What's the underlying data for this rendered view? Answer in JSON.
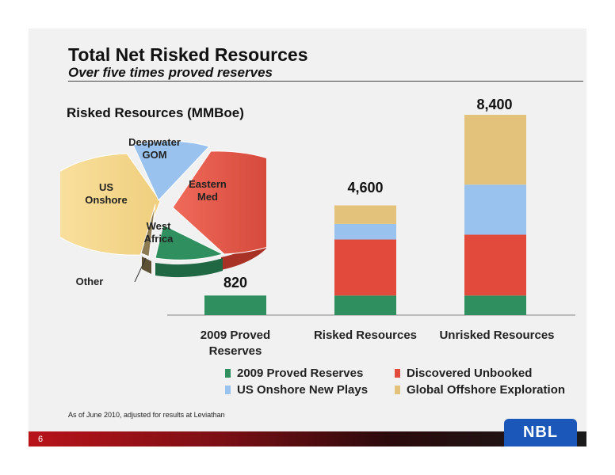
{
  "slide": {
    "title": "Total Net Risked Resources",
    "subtitle": "Over five times proved reserves",
    "section_title": "Risked Resources (MMBoe)",
    "footnote": "As of June 2010, adjusted for results at  Leviathan",
    "page_number": "6",
    "logo_text": "NBL"
  },
  "pie": {
    "labels": {
      "deepwater_line1": "Deepwater",
      "deepwater_line2": "GOM",
      "eastern_line1": "Eastern",
      "eastern_line2": "Med",
      "us_line1": "US",
      "us_line2": "Onshore",
      "west_line1": "West",
      "west_line2": "Africa",
      "other": "Other"
    },
    "colors": {
      "deepwater": "#99c2ee",
      "eastern": "#e24b3c",
      "us": "#f8d88a",
      "west": "#2f8f5e",
      "other": "#8c7a52"
    }
  },
  "chart_data": {
    "type": "bar",
    "stacked": true,
    "categories": [
      "2009 Proved Reserves",
      "Risked Resources",
      "Unrisked Resources"
    ],
    "category_lines": [
      [
        "2009 Proved",
        "Reserves"
      ],
      [
        "Risked Resources"
      ],
      [
        "Unrisked Resources"
      ]
    ],
    "totals": [
      "820",
      "4,600",
      "8,400"
    ],
    "series": [
      {
        "name": "2009 Proved Reserves",
        "color": "#2f8f5e",
        "values": [
          820,
          820,
          820
        ]
      },
      {
        "name": "Discovered Unbooked",
        "color": "#e24b3c",
        "values": [
          0,
          2350,
          2550
        ]
      },
      {
        "name": "US Onshore New Plays",
        "color": "#99c2ee",
        "values": [
          0,
          650,
          2100
        ]
      },
      {
        "name": "Global Offshore Exploration",
        "color": "#e3c37c",
        "values": [
          0,
          780,
          2930
        ]
      }
    ],
    "ylim": [
      0,
      8400
    ],
    "grid": false,
    "legend_position": "bottom"
  }
}
